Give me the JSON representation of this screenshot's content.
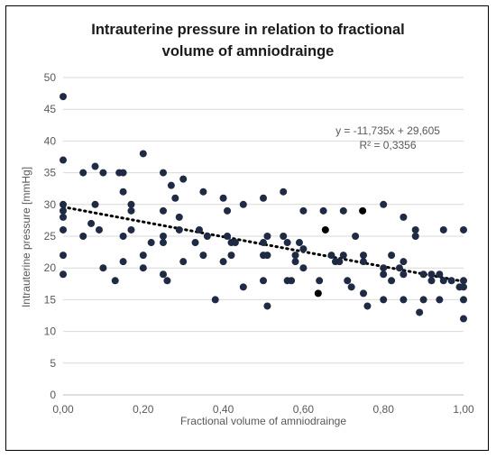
{
  "chart_data": {
    "type": "scatter",
    "title_lines": [
      "Intrauterine  pressure in relation to fractional",
      "volume of amniodrainge"
    ],
    "xlabel": "Fractional volume of amniodrainge",
    "ylabel": "Intrauterine pressure [mmHg]",
    "xlim": [
      0,
      1
    ],
    "ylim": [
      0,
      50
    ],
    "x_ticks": [
      "0,00",
      "0,20",
      "0,40",
      "0,60",
      "0,80",
      "1,00"
    ],
    "y_ticks": [
      "0",
      "5",
      "10",
      "15",
      "20",
      "25",
      "30",
      "35",
      "40",
      "45",
      "50"
    ],
    "grid": "horizontal",
    "series": [
      {
        "type": "scatter",
        "color": "#1f2a44",
        "points": [
          [
            0.0,
            47
          ],
          [
            0.0,
            37
          ],
          [
            0.0,
            30
          ],
          [
            0.0,
            29
          ],
          [
            0.0,
            28
          ],
          [
            0.0,
            26
          ],
          [
            0.0,
            22
          ],
          [
            0.0,
            19
          ],
          [
            0.05,
            35
          ],
          [
            0.05,
            25
          ],
          [
            0.07,
            27
          ],
          [
            0.08,
            36
          ],
          [
            0.08,
            30
          ],
          [
            0.09,
            26
          ],
          [
            0.1,
            35
          ],
          [
            0.1,
            20
          ],
          [
            0.13,
            18
          ],
          [
            0.14,
            35
          ],
          [
            0.15,
            35
          ],
          [
            0.15,
            32
          ],
          [
            0.15,
            25
          ],
          [
            0.15,
            21
          ],
          [
            0.17,
            30
          ],
          [
            0.17,
            29
          ],
          [
            0.17,
            26
          ],
          [
            0.2,
            38
          ],
          [
            0.2,
            22
          ],
          [
            0.2,
            20
          ],
          [
            0.22,
            24
          ],
          [
            0.25,
            35
          ],
          [
            0.25,
            29
          ],
          [
            0.25,
            25
          ],
          [
            0.25,
            24
          ],
          [
            0.25,
            19
          ],
          [
            0.26,
            18
          ],
          [
            0.27,
            33
          ],
          [
            0.28,
            31
          ],
          [
            0.29,
            28
          ],
          [
            0.29,
            26
          ],
          [
            0.3,
            34
          ],
          [
            0.3,
            21
          ],
          [
            0.33,
            24
          ],
          [
            0.34,
            26
          ],
          [
            0.35,
            32
          ],
          [
            0.35,
            22
          ],
          [
            0.36,
            25
          ],
          [
            0.38,
            15
          ],
          [
            0.4,
            31
          ],
          [
            0.4,
            21
          ],
          [
            0.41,
            29
          ],
          [
            0.41,
            25
          ],
          [
            0.42,
            24
          ],
          [
            0.42,
            22
          ],
          [
            0.43,
            24
          ],
          [
            0.45,
            30
          ],
          [
            0.45,
            17
          ],
          [
            0.5,
            31
          ],
          [
            0.5,
            24
          ],
          [
            0.5,
            22
          ],
          [
            0.5,
            18
          ],
          [
            0.51,
            25
          ],
          [
            0.51,
            22
          ],
          [
            0.51,
            14
          ],
          [
            0.55,
            32
          ],
          [
            0.55,
            25
          ],
          [
            0.56,
            24
          ],
          [
            0.56,
            18
          ],
          [
            0.57,
            18
          ],
          [
            0.58,
            22
          ],
          [
            0.58,
            21
          ],
          [
            0.59,
            24
          ],
          [
            0.6,
            29
          ],
          [
            0.6,
            23
          ],
          [
            0.6,
            20
          ],
          [
            0.64,
            18
          ],
          [
            0.65,
            29
          ],
          [
            0.67,
            22
          ],
          [
            0.68,
            21
          ],
          [
            0.69,
            21
          ],
          [
            0.7,
            29
          ],
          [
            0.7,
            22
          ],
          [
            0.71,
            18
          ],
          [
            0.72,
            17
          ],
          [
            0.73,
            25
          ],
          [
            0.75,
            22
          ],
          [
            0.75,
            21
          ],
          [
            0.75,
            16
          ],
          [
            0.76,
            14
          ],
          [
            0.8,
            30
          ],
          [
            0.8,
            20
          ],
          [
            0.8,
            19
          ],
          [
            0.8,
            15
          ],
          [
            0.82,
            22
          ],
          [
            0.82,
            18
          ],
          [
            0.84,
            20
          ],
          [
            0.85,
            28
          ],
          [
            0.85,
            21
          ],
          [
            0.85,
            19
          ],
          [
            0.85,
            15
          ],
          [
            0.88,
            26
          ],
          [
            0.88,
            25
          ],
          [
            0.89,
            13
          ],
          [
            0.9,
            19
          ],
          [
            0.9,
            15
          ],
          [
            0.92,
            19
          ],
          [
            0.92,
            18
          ],
          [
            0.94,
            19
          ],
          [
            0.94,
            15
          ],
          [
            0.95,
            26
          ],
          [
            0.95,
            18
          ],
          [
            0.97,
            18
          ],
          [
            0.99,
            17
          ],
          [
            1.0,
            26
          ],
          [
            1.0,
            18
          ],
          [
            1.0,
            17
          ],
          [
            1.0,
            15
          ],
          [
            1.0,
            12
          ]
        ]
      },
      {
        "type": "scatter",
        "color": "#000000",
        "points": [
          [
            0.655,
            26
          ],
          [
            0.748,
            29
          ],
          [
            0.637,
            16
          ]
        ]
      }
    ],
    "trendline": {
      "type": "linear",
      "slope": -11.735,
      "intercept": 29.605,
      "x_range": [
        0,
        1
      ],
      "style": "dotted",
      "equation_text": "y = -11,735x + 29,605",
      "r2_text": "R² = 0,3356"
    }
  }
}
